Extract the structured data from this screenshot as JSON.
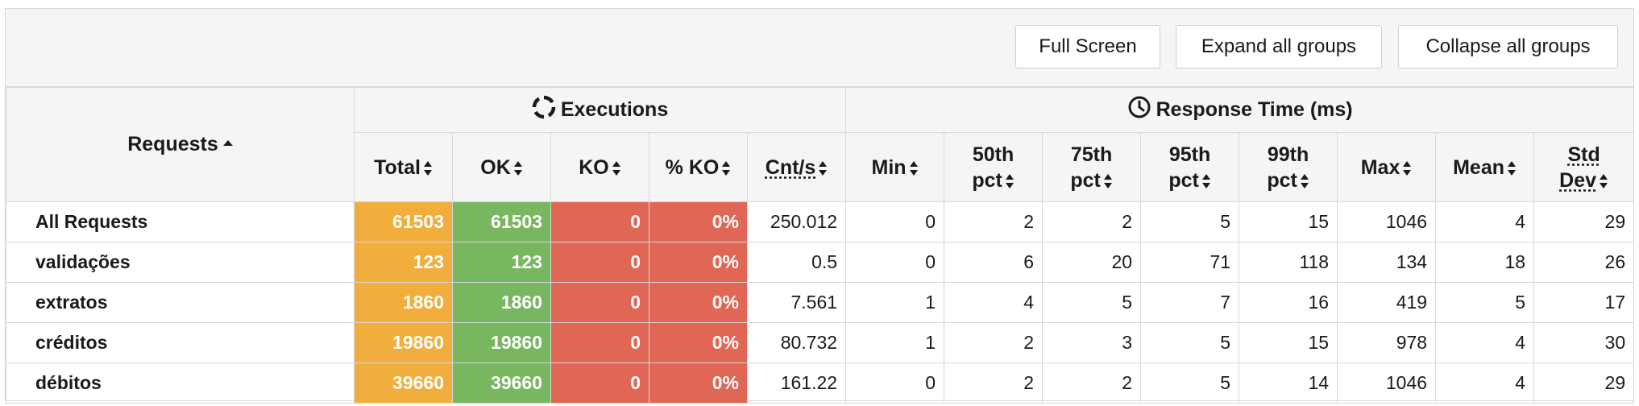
{
  "toolbar": {
    "full_screen": "Full Screen",
    "expand_all": "Expand all groups",
    "collapse_all": "Collapse all groups"
  },
  "header": {
    "requests": "Requests",
    "executions": "Executions",
    "response_time": "Response Time (ms)",
    "executions_icon": "loading-circle-icon",
    "response_time_icon": "clock-icon",
    "columns": {
      "total": "Total",
      "ok": "OK",
      "ko": "KO",
      "pct_ko": "% KO",
      "cnt_s": "Cnt/s",
      "min": "Min",
      "p50_a": "50th",
      "p50_b": "pct",
      "p75_a": "75th",
      "p75_b": "pct",
      "p95_a": "95th",
      "p95_b": "pct",
      "p99_a": "99th",
      "p99_b": "pct",
      "max": "Max",
      "mean": "Mean",
      "std_a": "Std",
      "std_b": "Dev"
    }
  },
  "colors": {
    "total": "#f2ae3c",
    "ok": "#79b660",
    "ko": "#e06656"
  },
  "rows": [
    {
      "name": "All Requests",
      "total": "61503",
      "ok": "61503",
      "ko": "0",
      "pct_ko": "0%",
      "cnt_s": "250.012",
      "min": "0",
      "p50": "2",
      "p75": "2",
      "p95": "5",
      "p99": "15",
      "max": "1046",
      "mean": "4",
      "std": "29"
    },
    {
      "name": "validações",
      "total": "123",
      "ok": "123",
      "ko": "0",
      "pct_ko": "0%",
      "cnt_s": "0.5",
      "min": "0",
      "p50": "6",
      "p75": "20",
      "p95": "71",
      "p99": "118",
      "max": "134",
      "mean": "18",
      "std": "26"
    },
    {
      "name": "extratos",
      "total": "1860",
      "ok": "1860",
      "ko": "0",
      "pct_ko": "0%",
      "cnt_s": "7.561",
      "min": "1",
      "p50": "4",
      "p75": "5",
      "p95": "7",
      "p99": "16",
      "max": "419",
      "mean": "5",
      "std": "17"
    },
    {
      "name": "créditos",
      "total": "19860",
      "ok": "19860",
      "ko": "0",
      "pct_ko": "0%",
      "cnt_s": "80.732",
      "min": "1",
      "p50": "2",
      "p75": "3",
      "p95": "5",
      "p99": "15",
      "max": "978",
      "mean": "4",
      "std": "30"
    },
    {
      "name": "débitos",
      "total": "39660",
      "ok": "39660",
      "ko": "0",
      "pct_ko": "0%",
      "cnt_s": "161.22",
      "min": "0",
      "p50": "2",
      "p75": "2",
      "p95": "5",
      "p99": "14",
      "max": "1046",
      "mean": "4",
      "std": "29"
    }
  ]
}
